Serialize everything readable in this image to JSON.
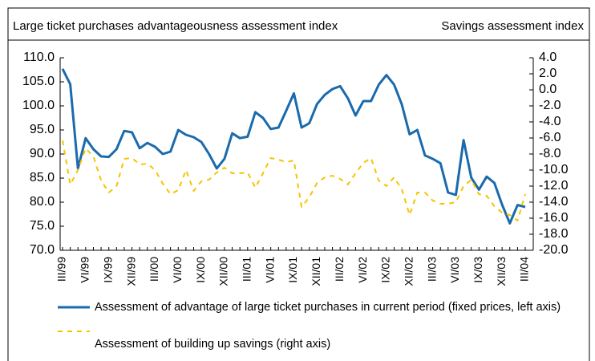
{
  "chart_data": {
    "type": "line",
    "ylabel": "Large ticket purchases advantageousness assessment index",
    "y2label": "Savings assessment index",
    "categories": [
      "III/99",
      null,
      null,
      "VI/99",
      null,
      null,
      "IX/99",
      null,
      null,
      "XII/99",
      null,
      null,
      "III/00",
      null,
      null,
      "VI/00",
      null,
      null,
      "IX/00",
      null,
      null,
      "XII/00",
      null,
      null,
      "III/01",
      null,
      null,
      "VI/01",
      null,
      null,
      "IX/01",
      null,
      null,
      "XII/01",
      null,
      null,
      "III/02",
      null,
      null,
      "VI/02",
      null,
      null,
      "IX/02",
      null,
      null,
      "XII/02",
      null,
      null,
      "III/03",
      null,
      null,
      "VI/03",
      null,
      null,
      "IX/03",
      null,
      null,
      "XII/03",
      null,
      null,
      "III/04"
    ],
    "series": [
      {
        "name": "Assessment of advantage of large ticket purchases in current period (fixed prices, left axis)",
        "color": "#1a6aad",
        "axis": "y",
        "style": "solid",
        "values": [
          107.7,
          104.5,
          87,
          93.3,
          91,
          89.5,
          89.4,
          91,
          94.8,
          94.5,
          91.2,
          92.3,
          91.5,
          90,
          90.5,
          95,
          94,
          93.5,
          92.5,
          90,
          87,
          89,
          94.3,
          93.3,
          93.6,
          98.7,
          97.5,
          95.2,
          95.5,
          99,
          102.6,
          95.5,
          96.4,
          100.4,
          102.3,
          103.5,
          104.1,
          101.6,
          98,
          101,
          101,
          104.4,
          106.4,
          104.4,
          100.3,
          94.1,
          95,
          89.7,
          89,
          88.1,
          82,
          81.5,
          92.9,
          85.1,
          82.6,
          85.3,
          84,
          79.5,
          75.6,
          79.4,
          79
        ]
      },
      {
        "name": "Assessment of building up savings (right axis)",
        "color": "#f5c400",
        "axis": "y2",
        "style": "dashed",
        "values": [
          -6.3,
          -11.8,
          -10,
          -7.3,
          -8.3,
          -11.3,
          -12.8,
          -12,
          -8.6,
          -8.5,
          -9.3,
          -9.2,
          -10,
          -11.7,
          -13,
          -12.5,
          -10,
          -12.6,
          -11.4,
          -11.2,
          -10.3,
          -9.7,
          -10.4,
          -10.4,
          -10.3,
          -12.2,
          -10.4,
          -8.5,
          -8.7,
          -9,
          -8.8,
          -14.6,
          -13.4,
          -11.6,
          -10.9,
          -10.7,
          -11.1,
          -11.8,
          -10.4,
          -9.1,
          -8.5,
          -11.3,
          -12,
          -10.9,
          -12.4,
          -15.6,
          -12.8,
          -12.8,
          -13.8,
          -14.2,
          -14.2,
          -14,
          -12,
          -11.2,
          -13,
          -13.2,
          -14.5,
          -15.3,
          -15.6,
          -16.3,
          -13
        ]
      }
    ],
    "ylim": [
      70,
      110
    ],
    "yticks": [
      {
        "value": 70,
        "label": "70.0"
      },
      {
        "value": 75,
        "label": "75.0"
      },
      {
        "value": 80,
        "label": "80.0"
      },
      {
        "value": 85,
        "label": "85.0"
      },
      {
        "value": 90,
        "label": "90.0"
      },
      {
        "value": 95,
        "label": "95.0"
      },
      {
        "value": 100,
        "label": "100.0"
      },
      {
        "value": 105,
        "label": "105.0"
      },
      {
        "value": 110,
        "label": "110.0"
      }
    ],
    "y2lim": [
      -20,
      4
    ],
    "y2ticks": [
      {
        "value": 4,
        "label": "4.0"
      },
      {
        "value": 2,
        "label": "2.0"
      },
      {
        "value": 0,
        "label": "0.0"
      },
      {
        "value": -2,
        "label": "-2.0"
      },
      {
        "value": -4,
        "label": "-4.0"
      },
      {
        "value": -6,
        "label": "-6.0"
      },
      {
        "value": -8,
        "label": "-8.0"
      },
      {
        "value": -10,
        "label": "-10.0"
      },
      {
        "value": -12,
        "label": "-12.0"
      },
      {
        "value": -14,
        "label": "-14.0"
      },
      {
        "value": -16,
        "label": "-16.0"
      },
      {
        "value": -18,
        "label": "-18.0"
      },
      {
        "value": -20,
        "label": "-20.0"
      }
    ],
    "grid": false
  }
}
